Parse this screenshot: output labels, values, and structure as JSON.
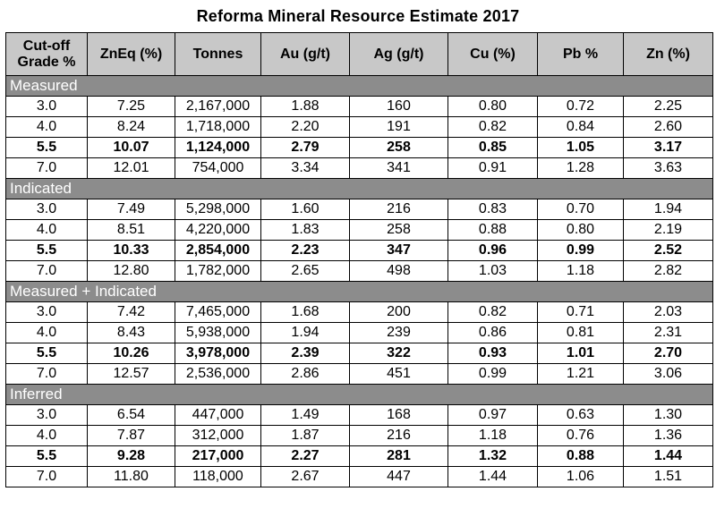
{
  "title": "Reforma Mineral Resource Estimate 2017",
  "headers": [
    "Cut-off Grade %",
    "ZnEq (%)",
    "Tonnes",
    "Au (g/t)",
    "Ag (g/t)",
    "Cu (%)",
    "Pb %",
    "Zn (%)"
  ],
  "header_lines": {
    "cutoff_1": "Cut-off",
    "cutoff_2": "Grade %"
  },
  "sections": [
    {
      "name": "Measured",
      "rows": [
        [
          "3.0",
          "7.25",
          "2,167,000",
          "1.88",
          "160",
          "0.80",
          "0.72",
          "2.25"
        ],
        [
          "4.0",
          "8.24",
          "1,718,000",
          "2.20",
          "191",
          "0.82",
          "0.84",
          "2.60"
        ],
        [
          "5.5",
          "10.07",
          "1,124,000",
          "2.79",
          "258",
          "0.85",
          "1.05",
          "3.17"
        ],
        [
          "7.0",
          "12.01",
          "754,000",
          "3.34",
          "341",
          "0.91",
          "1.28",
          "3.63"
        ]
      ]
    },
    {
      "name": "Indicated",
      "rows": [
        [
          "3.0",
          "7.49",
          "5,298,000",
          "1.60",
          "216",
          "0.83",
          "0.70",
          "1.94"
        ],
        [
          "4.0",
          "8.51",
          "4,220,000",
          "1.83",
          "258",
          "0.88",
          "0.80",
          "2.19"
        ],
        [
          "5.5",
          "10.33",
          "2,854,000",
          "2.23",
          "347",
          "0.96",
          "0.99",
          "2.52"
        ],
        [
          "7.0",
          "12.80",
          "1,782,000",
          "2.65",
          "498",
          "1.03",
          "1.18",
          "2.82"
        ]
      ]
    },
    {
      "name": "Measured + Indicated",
      "rows": [
        [
          "3.0",
          "7.42",
          "7,465,000",
          "1.68",
          "200",
          "0.82",
          "0.71",
          "2.03"
        ],
        [
          "4.0",
          "8.43",
          "5,938,000",
          "1.94",
          "239",
          "0.86",
          "0.81",
          "2.31"
        ],
        [
          "5.5",
          "10.26",
          "3,978,000",
          "2.39",
          "322",
          "0.93",
          "1.01",
          "2.70"
        ],
        [
          "7.0",
          "12.57",
          "2,536,000",
          "2.86",
          "451",
          "0.99",
          "1.21",
          "3.06"
        ]
      ]
    },
    {
      "name": "Inferred",
      "rows": [
        [
          "3.0",
          "6.54",
          "447,000",
          "1.49",
          "168",
          "0.97",
          "0.63",
          "1.30"
        ],
        [
          "4.0",
          "7.87",
          "312,000",
          "1.87",
          "216",
          "1.18",
          "0.76",
          "1.36"
        ],
        [
          "5.5",
          "9.28",
          "217,000",
          "2.27",
          "281",
          "1.32",
          "0.88",
          "1.44"
        ],
        [
          "7.0",
          "11.80",
          "118,000",
          "2.67",
          "447",
          "1.44",
          "1.06",
          "1.51"
        ]
      ]
    }
  ],
  "highlight_cutoff": "5.5",
  "colors": {
    "header_bg": "#c8c8c8",
    "section_bg": "#8c8c8c",
    "section_text": "#ffffff"
  }
}
